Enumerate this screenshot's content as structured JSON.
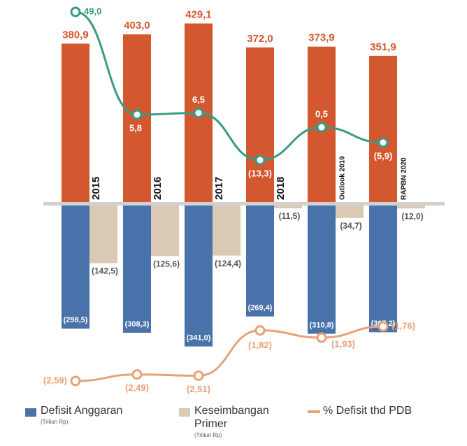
{
  "chart_data": {
    "type": "bar",
    "categories": [
      "2015",
      "2016",
      "2017",
      "2018",
      "Outlook 2019",
      "RAPBN 2020"
    ],
    "series": [
      {
        "type": "bar",
        "color": "#d4582f",
        "values": [
          380.9,
          403.0,
          429.1,
          372.0,
          373.9,
          351.9
        ],
        "value_labels": [
          "380,9",
          "403,0",
          "429,1",
          "372,0",
          "373,9",
          "351,9"
        ]
      },
      {
        "type": "bar",
        "name": "Defisit Anggaran",
        "legend_note": "(Triliun Rp)",
        "color": "#4a72aa",
        "values": [
          -298.5,
          -308.3,
          -341.0,
          -269.4,
          -310.8,
          -307.2
        ],
        "value_labels": [
          "(298,5)",
          "(308,3)",
          "(341,0)",
          "(269,4)",
          "(310,8)",
          "(307,2)"
        ]
      },
      {
        "type": "bar",
        "name": "Keseimbangan Primer",
        "legend_note": "(Triliun Rp)",
        "color": "#d9c9b5",
        "values": [
          -142.5,
          -125.6,
          -124.4,
          -11.5,
          -34.7,
          -12.0
        ],
        "value_labels": [
          "(142,5)",
          "(125,6)",
          "(124,4)",
          "(11,5)",
          "(34,7)",
          "(12,0)"
        ]
      },
      {
        "type": "line",
        "color": "#3a9a84",
        "values": [
          49.0,
          5.8,
          6.5,
          -13.3,
          0.5,
          -5.9
        ],
        "value_labels": [
          "49,0",
          "5,8",
          "6,5",
          "(13,3)",
          "0,5",
          "(5,9)"
        ]
      },
      {
        "type": "line",
        "name": "% Defisit thd PDB",
        "color": "#e8a274",
        "values": [
          -2.59,
          -2.49,
          -2.51,
          -1.82,
          -1.93,
          -1.76
        ],
        "value_labels": [
          "(2,59)",
          "(2,49)",
          "(2,51)",
          "(1,82)",
          "(1,93)",
          "(1,76)"
        ]
      }
    ]
  }
}
